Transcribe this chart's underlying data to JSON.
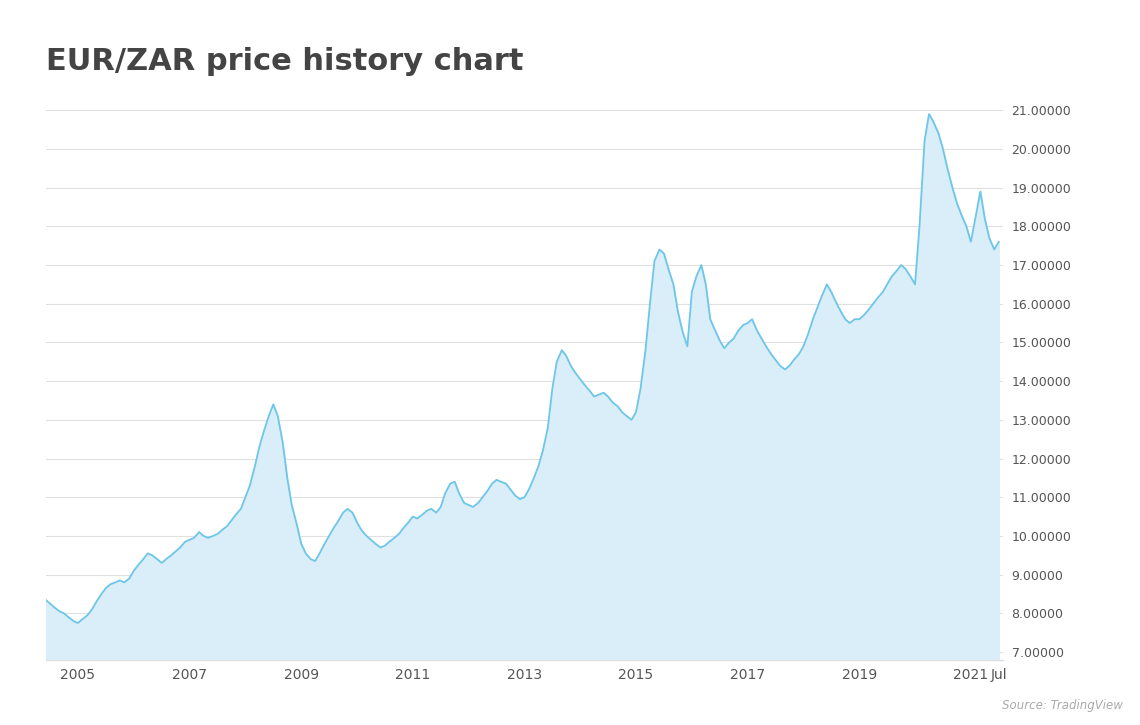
{
  "title": "EUR/ZAR price history chart",
  "title_color": "#444444",
  "title_fontsize": 22,
  "line_color": "#6ec6e8",
  "fill_color": "#d9eef8",
  "background_color": "#ffffff",
  "grid_color": "#e0e0e0",
  "tick_color": "#555555",
  "source_text": "Source: TradingView",
  "yticks": [
    7.0,
    8.0,
    9.0,
    10.0,
    11.0,
    12.0,
    13.0,
    14.0,
    15.0,
    16.0,
    17.0,
    18.0,
    19.0,
    20.0,
    21.0
  ],
  "ylim": [
    6.8,
    21.6
  ],
  "xlim_start": 2004.42,
  "xlim_end": 2021.58,
  "xtick_positions": [
    2005,
    2007,
    2009,
    2011,
    2013,
    2015,
    2017,
    2019,
    2021,
    2021.5
  ],
  "xtick_labels": [
    "2005",
    "2007",
    "2009",
    "2011",
    "2013",
    "2015",
    "2017",
    "2019",
    "2021",
    "Jul"
  ],
  "data": {
    "dates": [
      2004.42,
      2004.5,
      2004.58,
      2004.67,
      2004.75,
      2004.83,
      2004.92,
      2005.0,
      2005.08,
      2005.17,
      2005.25,
      2005.33,
      2005.42,
      2005.5,
      2005.58,
      2005.67,
      2005.75,
      2005.83,
      2005.92,
      2006.0,
      2006.08,
      2006.17,
      2006.25,
      2006.33,
      2006.42,
      2006.5,
      2006.58,
      2006.67,
      2006.75,
      2006.83,
      2006.92,
      2007.0,
      2007.08,
      2007.17,
      2007.25,
      2007.33,
      2007.42,
      2007.5,
      2007.58,
      2007.67,
      2007.75,
      2007.83,
      2007.92,
      2008.0,
      2008.08,
      2008.17,
      2008.25,
      2008.33,
      2008.42,
      2008.5,
      2008.58,
      2008.67,
      2008.75,
      2008.83,
      2008.92,
      2009.0,
      2009.08,
      2009.17,
      2009.25,
      2009.33,
      2009.42,
      2009.5,
      2009.58,
      2009.67,
      2009.75,
      2009.83,
      2009.92,
      2010.0,
      2010.08,
      2010.17,
      2010.25,
      2010.33,
      2010.42,
      2010.5,
      2010.58,
      2010.67,
      2010.75,
      2010.83,
      2010.92,
      2011.0,
      2011.08,
      2011.17,
      2011.25,
      2011.33,
      2011.42,
      2011.5,
      2011.58,
      2011.67,
      2011.75,
      2011.83,
      2011.92,
      2012.0,
      2012.08,
      2012.17,
      2012.25,
      2012.33,
      2012.42,
      2012.5,
      2012.58,
      2012.67,
      2012.75,
      2012.83,
      2012.92,
      2013.0,
      2013.08,
      2013.17,
      2013.25,
      2013.33,
      2013.42,
      2013.5,
      2013.58,
      2013.67,
      2013.75,
      2013.83,
      2013.92,
      2014.0,
      2014.08,
      2014.17,
      2014.25,
      2014.33,
      2014.42,
      2014.5,
      2014.58,
      2014.67,
      2014.75,
      2014.83,
      2014.92,
      2015.0,
      2015.08,
      2015.17,
      2015.25,
      2015.33,
      2015.42,
      2015.5,
      2015.58,
      2015.67,
      2015.75,
      2015.83,
      2015.92,
      2016.0,
      2016.08,
      2016.17,
      2016.25,
      2016.33,
      2016.42,
      2016.5,
      2016.58,
      2016.67,
      2016.75,
      2016.83,
      2016.92,
      2017.0,
      2017.08,
      2017.17,
      2017.25,
      2017.33,
      2017.42,
      2017.5,
      2017.58,
      2017.67,
      2017.75,
      2017.83,
      2017.92,
      2018.0,
      2018.08,
      2018.17,
      2018.25,
      2018.33,
      2018.42,
      2018.5,
      2018.58,
      2018.67,
      2018.75,
      2018.83,
      2018.92,
      2019.0,
      2019.08,
      2019.17,
      2019.25,
      2019.33,
      2019.42,
      2019.5,
      2019.58,
      2019.67,
      2019.75,
      2019.83,
      2019.92,
      2020.0,
      2020.08,
      2020.17,
      2020.25,
      2020.33,
      2020.42,
      2020.5,
      2020.58,
      2020.67,
      2020.75,
      2020.83,
      2020.92,
      2021.0,
      2021.08,
      2021.17,
      2021.25,
      2021.33,
      2021.42,
      2021.5
    ],
    "values": [
      8.35,
      8.25,
      8.15,
      8.05,
      8.0,
      7.9,
      7.8,
      7.75,
      7.85,
      7.95,
      8.1,
      8.3,
      8.5,
      8.65,
      8.75,
      8.8,
      8.85,
      8.8,
      8.9,
      9.1,
      9.25,
      9.4,
      9.55,
      9.5,
      9.4,
      9.3,
      9.4,
      9.5,
      9.6,
      9.7,
      9.85,
      9.9,
      9.95,
      10.1,
      10.0,
      9.95,
      10.0,
      10.05,
      10.15,
      10.25,
      10.4,
      10.55,
      10.7,
      11.0,
      11.3,
      11.8,
      12.3,
      12.7,
      13.1,
      13.4,
      13.1,
      12.4,
      11.5,
      10.8,
      10.3,
      9.8,
      9.55,
      9.4,
      9.35,
      9.55,
      9.8,
      10.0,
      10.2,
      10.4,
      10.6,
      10.7,
      10.6,
      10.35,
      10.15,
      10.0,
      9.9,
      9.8,
      9.7,
      9.75,
      9.85,
      9.95,
      10.05,
      10.2,
      10.35,
      10.5,
      10.45,
      10.55,
      10.65,
      10.7,
      10.6,
      10.75,
      11.1,
      11.35,
      11.4,
      11.1,
      10.85,
      10.8,
      10.75,
      10.85,
      11.0,
      11.15,
      11.35,
      11.45,
      11.4,
      11.35,
      11.2,
      11.05,
      10.95,
      11.0,
      11.2,
      11.5,
      11.8,
      12.2,
      12.8,
      13.8,
      14.5,
      14.8,
      14.65,
      14.4,
      14.2,
      14.05,
      13.9,
      13.75,
      13.6,
      13.65,
      13.7,
      13.6,
      13.45,
      13.35,
      13.2,
      13.1,
      13.0,
      13.2,
      13.8,
      14.8,
      16.0,
      17.1,
      17.4,
      17.3,
      16.9,
      16.5,
      15.8,
      15.3,
      14.9,
      16.3,
      16.7,
      17.0,
      16.5,
      15.6,
      15.3,
      15.05,
      14.85,
      15.0,
      15.1,
      15.3,
      15.45,
      15.5,
      15.6,
      15.3,
      15.1,
      14.9,
      14.7,
      14.55,
      14.4,
      14.3,
      14.4,
      14.55,
      14.7,
      14.9,
      15.2,
      15.6,
      15.9,
      16.2,
      16.5,
      16.3,
      16.05,
      15.8,
      15.6,
      15.5,
      15.6,
      15.6,
      15.7,
      15.85,
      16.0,
      16.15,
      16.3,
      16.5,
      16.7,
      16.85,
      17.0,
      16.9,
      16.7,
      16.5,
      18.0,
      20.2,
      20.9,
      20.7,
      20.4,
      20.0,
      19.5,
      19.0,
      18.6,
      18.3,
      18.0,
      17.6,
      18.2,
      18.9,
      18.2,
      17.7,
      17.4,
      17.6
    ]
  }
}
